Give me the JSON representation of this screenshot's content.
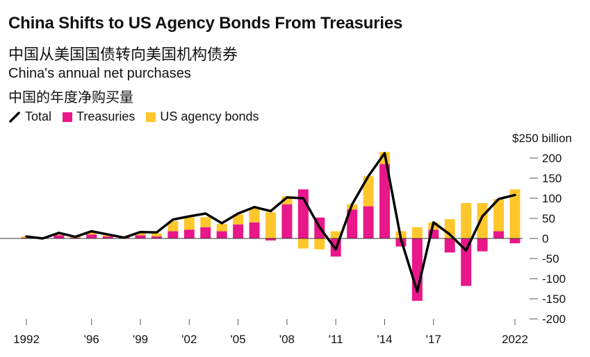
{
  "title": "China Shifts to US Agency Bonds From Treasuries",
  "subtitle_cn": "中国从美国国债转向美国机构债券",
  "subtitle": "China's annual net purchases",
  "subtitle2_cn": "中国的年度净购买量",
  "legend": {
    "total": "Total",
    "treasuries": "Treasuries",
    "agency": "US agency bonds"
  },
  "colors": {
    "treasuries": "#e8178a",
    "agency": "#ffc72c",
    "total": "#000000",
    "axis": "#555555"
  },
  "chart_data": {
    "type": "bar",
    "stacked": true,
    "unit_label": "$250 billion",
    "ylim": [
      -200,
      250
    ],
    "yticks": [
      250,
      200,
      150,
      100,
      50,
      0,
      -50,
      -100,
      -150,
      -200
    ],
    "ytick_labels": [
      "$250 billion",
      "200",
      "150",
      "100",
      "50",
      "0",
      "-50",
      "-100",
      "-150",
      "-200"
    ],
    "xticks": [
      1992,
      1996,
      1999,
      2002,
      2005,
      2008,
      2011,
      2014,
      2017,
      2022
    ],
    "xtick_labels": [
      "1992",
      "'96",
      "'99",
      "'02",
      "'05",
      "'08",
      "'11",
      "'14",
      "'17",
      "2022"
    ],
    "years": [
      1992,
      1993,
      1994,
      1995,
      1996,
      1997,
      1998,
      1999,
      2000,
      2001,
      2002,
      2003,
      2004,
      2005,
      2006,
      2007,
      2008,
      2009,
      2010,
      2011,
      2012,
      2013,
      2014,
      2015,
      2016,
      2017,
      2018,
      2019,
      2020,
      2021,
      2022
    ],
    "series": [
      {
        "name": "Treasuries",
        "values": [
          2,
          0,
          8,
          2,
          10,
          5,
          3,
          8,
          5,
          18,
          22,
          28,
          18,
          35,
          40,
          -5,
          85,
          122,
          52,
          -45,
          72,
          80,
          185,
          -20,
          -155,
          22,
          -35,
          -118,
          -32,
          18,
          -12
        ]
      },
      {
        "name": "US agency bonds",
        "values": [
          3,
          1,
          5,
          3,
          7,
          4,
          3,
          7,
          8,
          25,
          30,
          25,
          18,
          25,
          35,
          65,
          20,
          -25,
          -27,
          18,
          13,
          75,
          30,
          18,
          28,
          18,
          48,
          88,
          88,
          80,
          122
        ]
      },
      {
        "name": "Total",
        "values": [
          5,
          0,
          14,
          4,
          18,
          10,
          2,
          16,
          15,
          47,
          55,
          62,
          38,
          62,
          78,
          68,
          102,
          100,
          28,
          -27,
          85,
          155,
          212,
          -2,
          -132,
          40,
          10,
          -30,
          55,
          98,
          108
        ]
      }
    ]
  }
}
